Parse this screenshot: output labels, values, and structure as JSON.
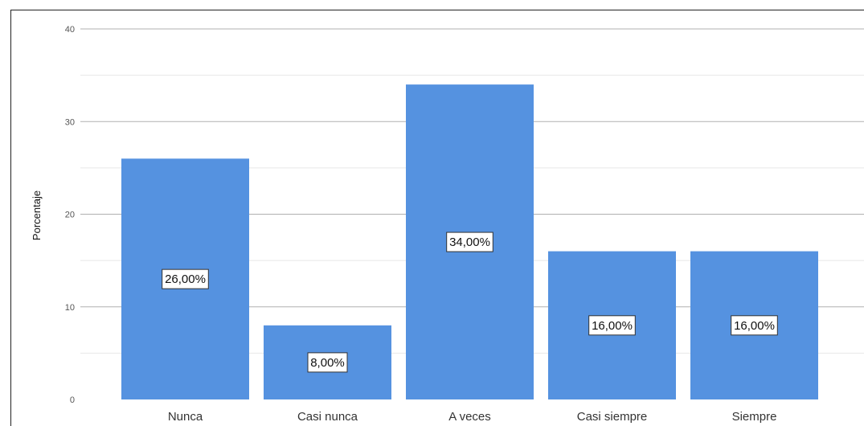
{
  "chart_data": {
    "type": "bar",
    "ylabel": "Porcentaje",
    "xlabel": "",
    "ylim": [
      0,
      40
    ],
    "yticks": [
      0,
      10,
      20,
      30,
      40
    ],
    "grid": true,
    "categories": [
      "Nunca",
      "Casi nunca",
      "A veces",
      "Casi siempre",
      "Siempre"
    ],
    "values": [
      26,
      8,
      34,
      16,
      16
    ],
    "data_labels": [
      "26,00%",
      "8,00%",
      "34,00%",
      "16,00%",
      "16,00%"
    ]
  },
  "colors": {
    "bar": "#5592e0",
    "grid_major": "#b0b0b0",
    "grid_minor": "#e8e8e8",
    "axis": "#222222"
  }
}
